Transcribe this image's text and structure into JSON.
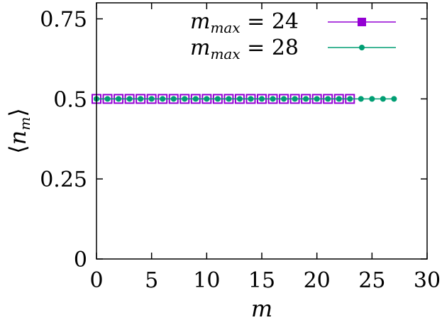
{
  "chart_data": {
    "type": "scatter",
    "xlabel": "m",
    "ylabel": "⟨n_m⟩",
    "ylabel_parts": {
      "left": "⟨",
      "var": "n",
      "sub": "m",
      "right": "⟩"
    },
    "xlim": [
      0,
      30
    ],
    "ylim": [
      0,
      0.8
    ],
    "x_ticks": [
      0,
      5,
      10,
      15,
      20,
      25,
      30
    ],
    "x_tick_labels": [
      "0",
      "5",
      "10",
      "15",
      "20",
      "25",
      "30"
    ],
    "y_ticks": [
      0,
      0.25,
      0.5,
      0.75
    ],
    "y_tick_labels": [
      "0",
      "0.25",
      "0.5",
      "0.75"
    ],
    "grid": false,
    "legend_position": "top-right",
    "series": [
      {
        "name": "m_max = 24",
        "legend_parts": {
          "var": "m",
          "sub": "max",
          "rest": " = 24"
        },
        "marker": "square",
        "color": "#9400d3",
        "x": [
          0,
          1,
          2,
          3,
          4,
          5,
          6,
          7,
          8,
          9,
          10,
          11,
          12,
          13,
          14,
          15,
          16,
          17,
          18,
          19,
          20,
          21,
          22,
          23
        ],
        "y": [
          0.5,
          0.5,
          0.5,
          0.5,
          0.5,
          0.5,
          0.5,
          0.5,
          0.5,
          0.5,
          0.5,
          0.5,
          0.5,
          0.5,
          0.5,
          0.5,
          0.5,
          0.5,
          0.5,
          0.5,
          0.5,
          0.5,
          0.5,
          0.5
        ]
      },
      {
        "name": "m_max = 28",
        "legend_parts": {
          "var": "m",
          "sub": "max",
          "rest": " = 28"
        },
        "marker": "circle",
        "color": "#009e73",
        "x": [
          0,
          1,
          2,
          3,
          4,
          5,
          6,
          7,
          8,
          9,
          10,
          11,
          12,
          13,
          14,
          15,
          16,
          17,
          18,
          19,
          20,
          21,
          22,
          23,
          24,
          25,
          26,
          27
        ],
        "y": [
          0.5,
          0.5,
          0.5,
          0.5,
          0.5,
          0.5,
          0.5,
          0.5,
          0.5,
          0.5,
          0.5,
          0.5,
          0.5,
          0.5,
          0.5,
          0.5,
          0.5,
          0.5,
          0.5,
          0.5,
          0.5,
          0.5,
          0.5,
          0.5,
          0.5,
          0.5,
          0.5,
          0.5
        ]
      }
    ]
  }
}
